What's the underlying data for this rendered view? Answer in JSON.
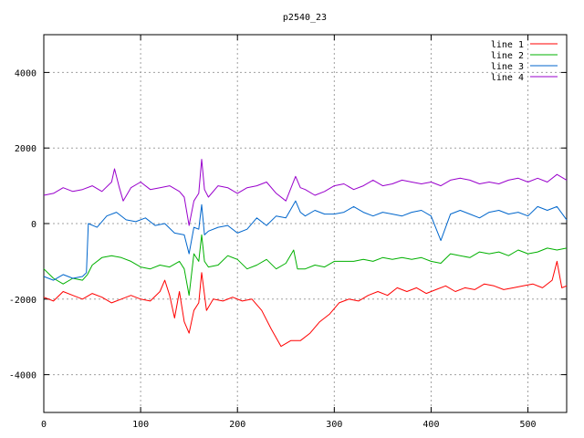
{
  "chart_data": {
    "type": "line",
    "title": "p2540_23",
    "xlabel": "",
    "ylabel": "",
    "xlim": [
      0,
      540
    ],
    "ylim": [
      -5000,
      5000
    ],
    "x_ticks": [
      0,
      100,
      200,
      300,
      400,
      500
    ],
    "x_tick_labels": [
      "0",
      "100",
      "200",
      "300",
      "400",
      "500"
    ],
    "y_ticks": [
      -4000,
      -2000,
      0,
      2000,
      4000
    ],
    "y_tick_labels": [
      "-4000",
      "-2000",
      "0",
      "2000",
      "4000"
    ],
    "grid": true,
    "legend_position": "top-right",
    "series": [
      {
        "name": "line 1",
        "color": "#ff0000",
        "points": [
          [
            0,
            -1950
          ],
          [
            10,
            -2050
          ],
          [
            20,
            -1800
          ],
          [
            30,
            -1900
          ],
          [
            40,
            -2000
          ],
          [
            50,
            -1850
          ],
          [
            60,
            -1950
          ],
          [
            70,
            -2100
          ],
          [
            80,
            -2000
          ],
          [
            90,
            -1900
          ],
          [
            100,
            -2000
          ],
          [
            110,
            -2050
          ],
          [
            120,
            -1800
          ],
          [
            125,
            -1500
          ],
          [
            130,
            -1900
          ],
          [
            135,
            -2500
          ],
          [
            140,
            -1800
          ],
          [
            145,
            -2600
          ],
          [
            150,
            -2900
          ],
          [
            155,
            -2300
          ],
          [
            160,
            -2100
          ],
          [
            163,
            -1300
          ],
          [
            168,
            -2300
          ],
          [
            175,
            -2000
          ],
          [
            185,
            -2050
          ],
          [
            195,
            -1950
          ],
          [
            205,
            -2050
          ],
          [
            215,
            -2000
          ],
          [
            225,
            -2300
          ],
          [
            235,
            -2800
          ],
          [
            245,
            -3250
          ],
          [
            255,
            -3100
          ],
          [
            265,
            -3100
          ],
          [
            275,
            -2900
          ],
          [
            285,
            -2600
          ],
          [
            295,
            -2400
          ],
          [
            305,
            -2100
          ],
          [
            315,
            -2000
          ],
          [
            325,
            -2050
          ],
          [
            335,
            -1900
          ],
          [
            345,
            -1800
          ],
          [
            355,
            -1900
          ],
          [
            365,
            -1700
          ],
          [
            375,
            -1800
          ],
          [
            385,
            -1700
          ],
          [
            395,
            -1850
          ],
          [
            405,
            -1750
          ],
          [
            415,
            -1650
          ],
          [
            425,
            -1800
          ],
          [
            435,
            -1700
          ],
          [
            445,
            -1750
          ],
          [
            455,
            -1600
          ],
          [
            465,
            -1650
          ],
          [
            475,
            -1750
          ],
          [
            485,
            -1700
          ],
          [
            495,
            -1650
          ],
          [
            505,
            -1600
          ],
          [
            515,
            -1700
          ],
          [
            525,
            -1500
          ],
          [
            530,
            -1000
          ],
          [
            535,
            -1700
          ],
          [
            540,
            -1650
          ]
        ]
      },
      {
        "name": "line 2",
        "color": "#00b000",
        "points": [
          [
            0,
            -1200
          ],
          [
            10,
            -1450
          ],
          [
            20,
            -1600
          ],
          [
            30,
            -1450
          ],
          [
            40,
            -1500
          ],
          [
            45,
            -1350
          ],
          [
            50,
            -1100
          ],
          [
            60,
            -900
          ],
          [
            70,
            -850
          ],
          [
            80,
            -900
          ],
          [
            90,
            -1000
          ],
          [
            100,
            -1150
          ],
          [
            110,
            -1200
          ],
          [
            120,
            -1100
          ],
          [
            130,
            -1150
          ],
          [
            140,
            -1000
          ],
          [
            145,
            -1200
          ],
          [
            150,
            -1900
          ],
          [
            155,
            -800
          ],
          [
            160,
            -1000
          ],
          [
            163,
            -300
          ],
          [
            166,
            -1000
          ],
          [
            170,
            -1150
          ],
          [
            180,
            -1100
          ],
          [
            190,
            -850
          ],
          [
            200,
            -950
          ],
          [
            210,
            -1200
          ],
          [
            220,
            -1100
          ],
          [
            230,
            -950
          ],
          [
            240,
            -1200
          ],
          [
            250,
            -1050
          ],
          [
            258,
            -700
          ],
          [
            262,
            -1200
          ],
          [
            270,
            -1200
          ],
          [
            280,
            -1100
          ],
          [
            290,
            -1150
          ],
          [
            300,
            -1000
          ],
          [
            310,
            -1000
          ],
          [
            320,
            -1000
          ],
          [
            330,
            -950
          ],
          [
            340,
            -1000
          ],
          [
            350,
            -900
          ],
          [
            360,
            -950
          ],
          [
            370,
            -900
          ],
          [
            380,
            -950
          ],
          [
            390,
            -900
          ],
          [
            400,
            -1000
          ],
          [
            410,
            -1050
          ],
          [
            420,
            -800
          ],
          [
            430,
            -850
          ],
          [
            440,
            -900
          ],
          [
            450,
            -750
          ],
          [
            460,
            -800
          ],
          [
            470,
            -750
          ],
          [
            480,
            -850
          ],
          [
            490,
            -700
          ],
          [
            500,
            -800
          ],
          [
            510,
            -750
          ],
          [
            520,
            -650
          ],
          [
            530,
            -700
          ],
          [
            540,
            -650
          ]
        ]
      },
      {
        "name": "line 3",
        "color": "#0066cc",
        "points": [
          [
            0,
            -1400
          ],
          [
            10,
            -1500
          ],
          [
            20,
            -1350
          ],
          [
            30,
            -1450
          ],
          [
            40,
            -1400
          ],
          [
            44,
            -1300
          ],
          [
            46,
            0
          ],
          [
            55,
            -100
          ],
          [
            65,
            200
          ],
          [
            75,
            300
          ],
          [
            85,
            100
          ],
          [
            95,
            50
          ],
          [
            105,
            150
          ],
          [
            115,
            -50
          ],
          [
            125,
            0
          ],
          [
            135,
            -250
          ],
          [
            145,
            -300
          ],
          [
            150,
            -800
          ],
          [
            155,
            -100
          ],
          [
            160,
            -150
          ],
          [
            163,
            500
          ],
          [
            166,
            -300
          ],
          [
            170,
            -200
          ],
          [
            180,
            -100
          ],
          [
            190,
            -50
          ],
          [
            200,
            -250
          ],
          [
            210,
            -150
          ],
          [
            220,
            150
          ],
          [
            230,
            -50
          ],
          [
            240,
            200
          ],
          [
            250,
            150
          ],
          [
            260,
            600
          ],
          [
            265,
            300
          ],
          [
            270,
            200
          ],
          [
            280,
            350
          ],
          [
            290,
            250
          ],
          [
            300,
            250
          ],
          [
            310,
            300
          ],
          [
            320,
            450
          ],
          [
            330,
            300
          ],
          [
            340,
            200
          ],
          [
            350,
            300
          ],
          [
            360,
            250
          ],
          [
            370,
            200
          ],
          [
            380,
            300
          ],
          [
            390,
            350
          ],
          [
            400,
            200
          ],
          [
            410,
            -450
          ],
          [
            420,
            250
          ],
          [
            430,
            350
          ],
          [
            440,
            250
          ],
          [
            450,
            150
          ],
          [
            460,
            300
          ],
          [
            470,
            350
          ],
          [
            480,
            250
          ],
          [
            490,
            300
          ],
          [
            500,
            200
          ],
          [
            510,
            450
          ],
          [
            520,
            350
          ],
          [
            530,
            450
          ],
          [
            540,
            100
          ]
        ]
      },
      {
        "name": "line 4",
        "color": "#9900cc",
        "points": [
          [
            0,
            750
          ],
          [
            10,
            800
          ],
          [
            20,
            950
          ],
          [
            30,
            850
          ],
          [
            40,
            900
          ],
          [
            50,
            1000
          ],
          [
            60,
            850
          ],
          [
            70,
            1100
          ],
          [
            73,
            1450
          ],
          [
            78,
            950
          ],
          [
            82,
            600
          ],
          [
            90,
            950
          ],
          [
            100,
            1100
          ],
          [
            110,
            900
          ],
          [
            120,
            950
          ],
          [
            130,
            1000
          ],
          [
            140,
            850
          ],
          [
            145,
            700
          ],
          [
            150,
            -50
          ],
          [
            155,
            600
          ],
          [
            160,
            800
          ],
          [
            163,
            1700
          ],
          [
            166,
            900
          ],
          [
            170,
            700
          ],
          [
            180,
            1000
          ],
          [
            190,
            950
          ],
          [
            200,
            800
          ],
          [
            210,
            950
          ],
          [
            220,
            1000
          ],
          [
            230,
            1100
          ],
          [
            240,
            800
          ],
          [
            250,
            600
          ],
          [
            260,
            1250
          ],
          [
            265,
            950
          ],
          [
            270,
            900
          ],
          [
            280,
            750
          ],
          [
            290,
            850
          ],
          [
            300,
            1000
          ],
          [
            310,
            1050
          ],
          [
            320,
            900
          ],
          [
            330,
            1000
          ],
          [
            340,
            1150
          ],
          [
            350,
            1000
          ],
          [
            360,
            1050
          ],
          [
            370,
            1150
          ],
          [
            380,
            1100
          ],
          [
            390,
            1050
          ],
          [
            400,
            1100
          ],
          [
            410,
            1000
          ],
          [
            420,
            1150
          ],
          [
            430,
            1200
          ],
          [
            440,
            1150
          ],
          [
            450,
            1050
          ],
          [
            460,
            1100
          ],
          [
            470,
            1050
          ],
          [
            480,
            1150
          ],
          [
            490,
            1200
          ],
          [
            500,
            1100
          ],
          [
            510,
            1200
          ],
          [
            520,
            1100
          ],
          [
            530,
            1300
          ],
          [
            540,
            1150
          ]
        ]
      }
    ]
  }
}
